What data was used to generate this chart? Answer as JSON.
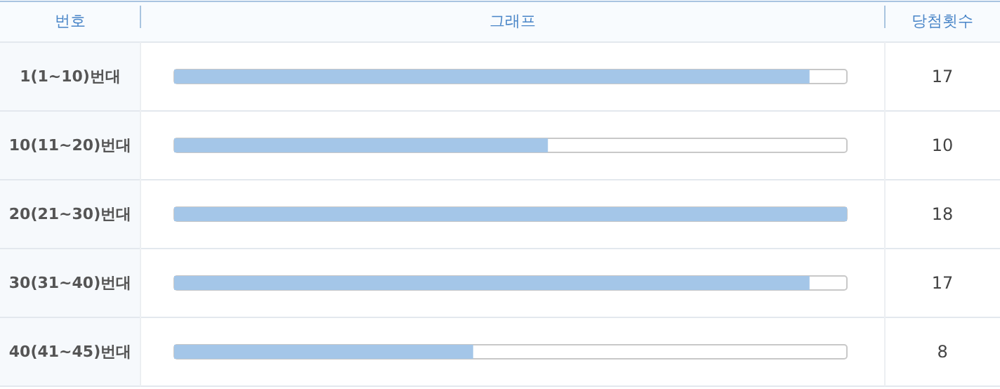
{
  "chart_data": {
    "type": "bar",
    "orientation": "horizontal",
    "ylabel": "번호",
    "xlabel": "그래프",
    "y2label": "당첨횟수",
    "categories": [
      "1(1~10)번대",
      "10(11~20)번대",
      "20(21~30)번대",
      "30(31~40)번대",
      "40(41~45)번대"
    ],
    "values": [
      17,
      10,
      18,
      17,
      8
    ],
    "color": "#a4c6e8",
    "tick_labels": "y",
    "data_labels": true
  }
}
